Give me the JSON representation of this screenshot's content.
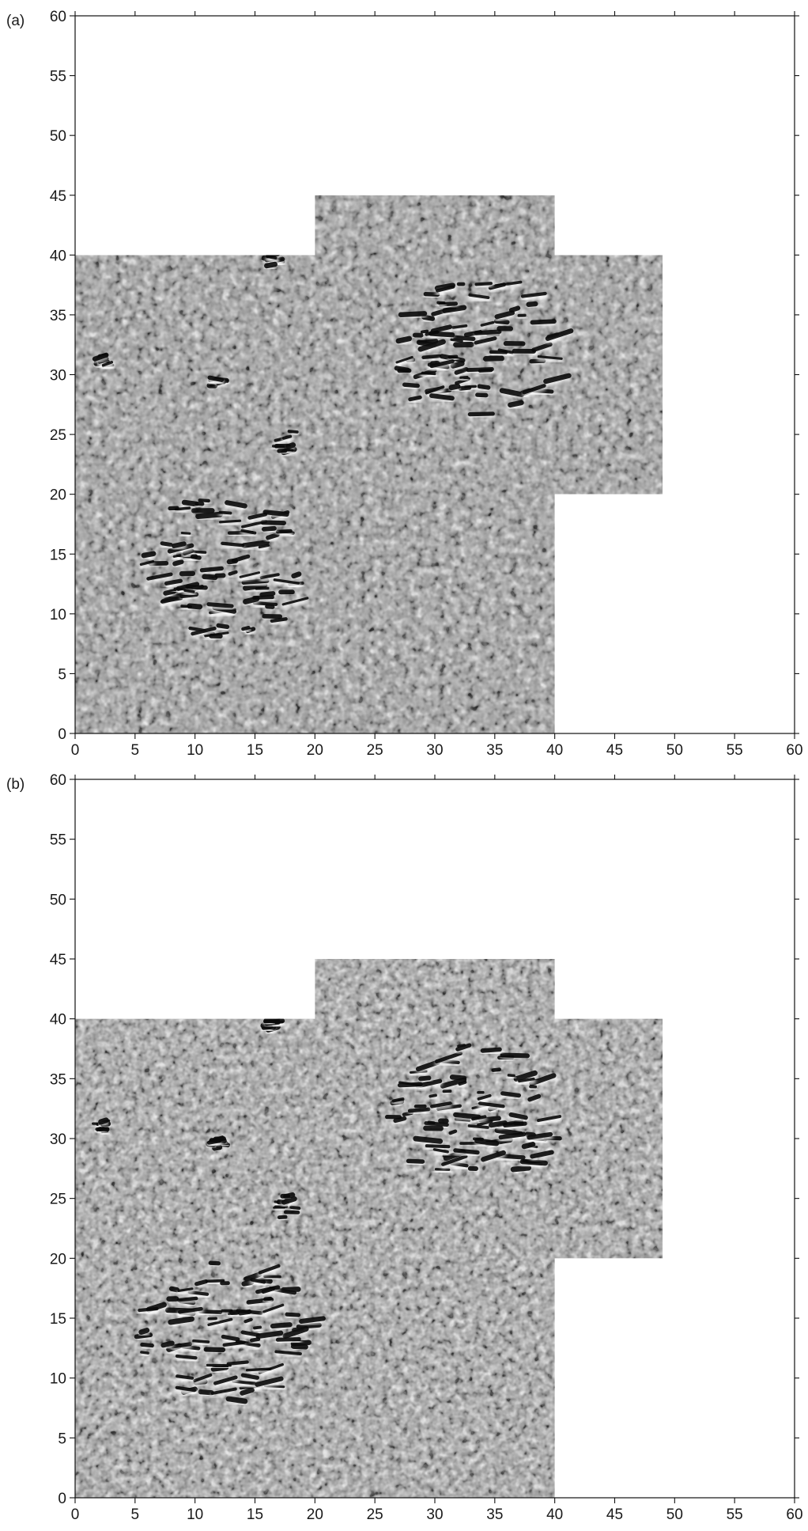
{
  "chart_data": [
    {
      "type": "heatmap",
      "panel_label": "(a)",
      "colormap": "grayscale shaded-relief",
      "background": "#9a9a9a",
      "xlim": [
        0,
        60
      ],
      "ylim": [
        0,
        60
      ],
      "xticks": [
        0,
        5,
        10,
        15,
        20,
        25,
        30,
        35,
        40,
        45,
        50,
        55,
        60
      ],
      "yticks": [
        0,
        5,
        10,
        15,
        20,
        25,
        30,
        35,
        40,
        45,
        50,
        55,
        60
      ],
      "xtick_labels": [
        "0",
        "5",
        "10",
        "15",
        "20",
        "25",
        "30",
        "35",
        "40",
        "45",
        "50",
        "55",
        "60"
      ],
      "ytick_labels": [
        "0",
        "5",
        "10",
        "15",
        "20",
        "25",
        "30",
        "35",
        "40",
        "45",
        "50",
        "55",
        "60"
      ],
      "xlabel": "",
      "ylabel": "",
      "grid": false,
      "survey_outline": [
        [
          0,
          0
        ],
        [
          40,
          0
        ],
        [
          40,
          20
        ],
        [
          49,
          20
        ],
        [
          49,
          40
        ],
        [
          40,
          40
        ],
        [
          40,
          45
        ],
        [
          20,
          45
        ],
        [
          20,
          40
        ],
        [
          0,
          40
        ]
      ],
      "anomalies": [
        {
          "x": 12,
          "y": 14,
          "radius": 7
        },
        {
          "x": 33,
          "y": 32,
          "radius": 7
        },
        {
          "x": 17.5,
          "y": 24.3,
          "radius": 1.2
        },
        {
          "x": 2,
          "y": 31,
          "radius": 0.6
        },
        {
          "x": 11.5,
          "y": 29.5,
          "radius": 0.6
        },
        {
          "x": 16,
          "y": 39.5,
          "radius": 0.5
        }
      ]
    },
    {
      "type": "heatmap",
      "panel_label": "(b)",
      "colormap": "grayscale shaded-relief",
      "background": "#9e9e9e",
      "xlim": [
        0,
        60
      ],
      "ylim": [
        0,
        60
      ],
      "xticks": [
        0,
        5,
        10,
        15,
        20,
        25,
        30,
        35,
        40,
        45,
        50,
        55,
        60
      ],
      "yticks": [
        0,
        5,
        10,
        15,
        20,
        25,
        30,
        35,
        40,
        45,
        50,
        55,
        60
      ],
      "xtick_labels": [
        "0",
        "5",
        "10",
        "15",
        "20",
        "25",
        "30",
        "35",
        "40",
        "45",
        "50",
        "55",
        "60"
      ],
      "ytick_labels": [
        "0",
        "5",
        "10",
        "15",
        "20",
        "25",
        "30",
        "35",
        "40",
        "45",
        "50",
        "55",
        "60"
      ],
      "xlabel": "",
      "ylabel": "",
      "grid": false,
      "survey_outline": [
        [
          0,
          0
        ],
        [
          40,
          0
        ],
        [
          40,
          20
        ],
        [
          49,
          20
        ],
        [
          49,
          40
        ],
        [
          40,
          40
        ],
        [
          40,
          45
        ],
        [
          20,
          45
        ],
        [
          20,
          40
        ],
        [
          0,
          40
        ]
      ],
      "anomalies": [
        {
          "x": 12,
          "y": 14,
          "radius": 7
        },
        {
          "x": 33,
          "y": 32,
          "radius": 7
        },
        {
          "x": 17.5,
          "y": 24.3,
          "radius": 1.2
        },
        {
          "x": 2,
          "y": 31,
          "radius": 0.6
        },
        {
          "x": 11.5,
          "y": 29.5,
          "radius": 0.6
        },
        {
          "x": 16,
          "y": 39.5,
          "radius": 0.5
        }
      ]
    }
  ]
}
